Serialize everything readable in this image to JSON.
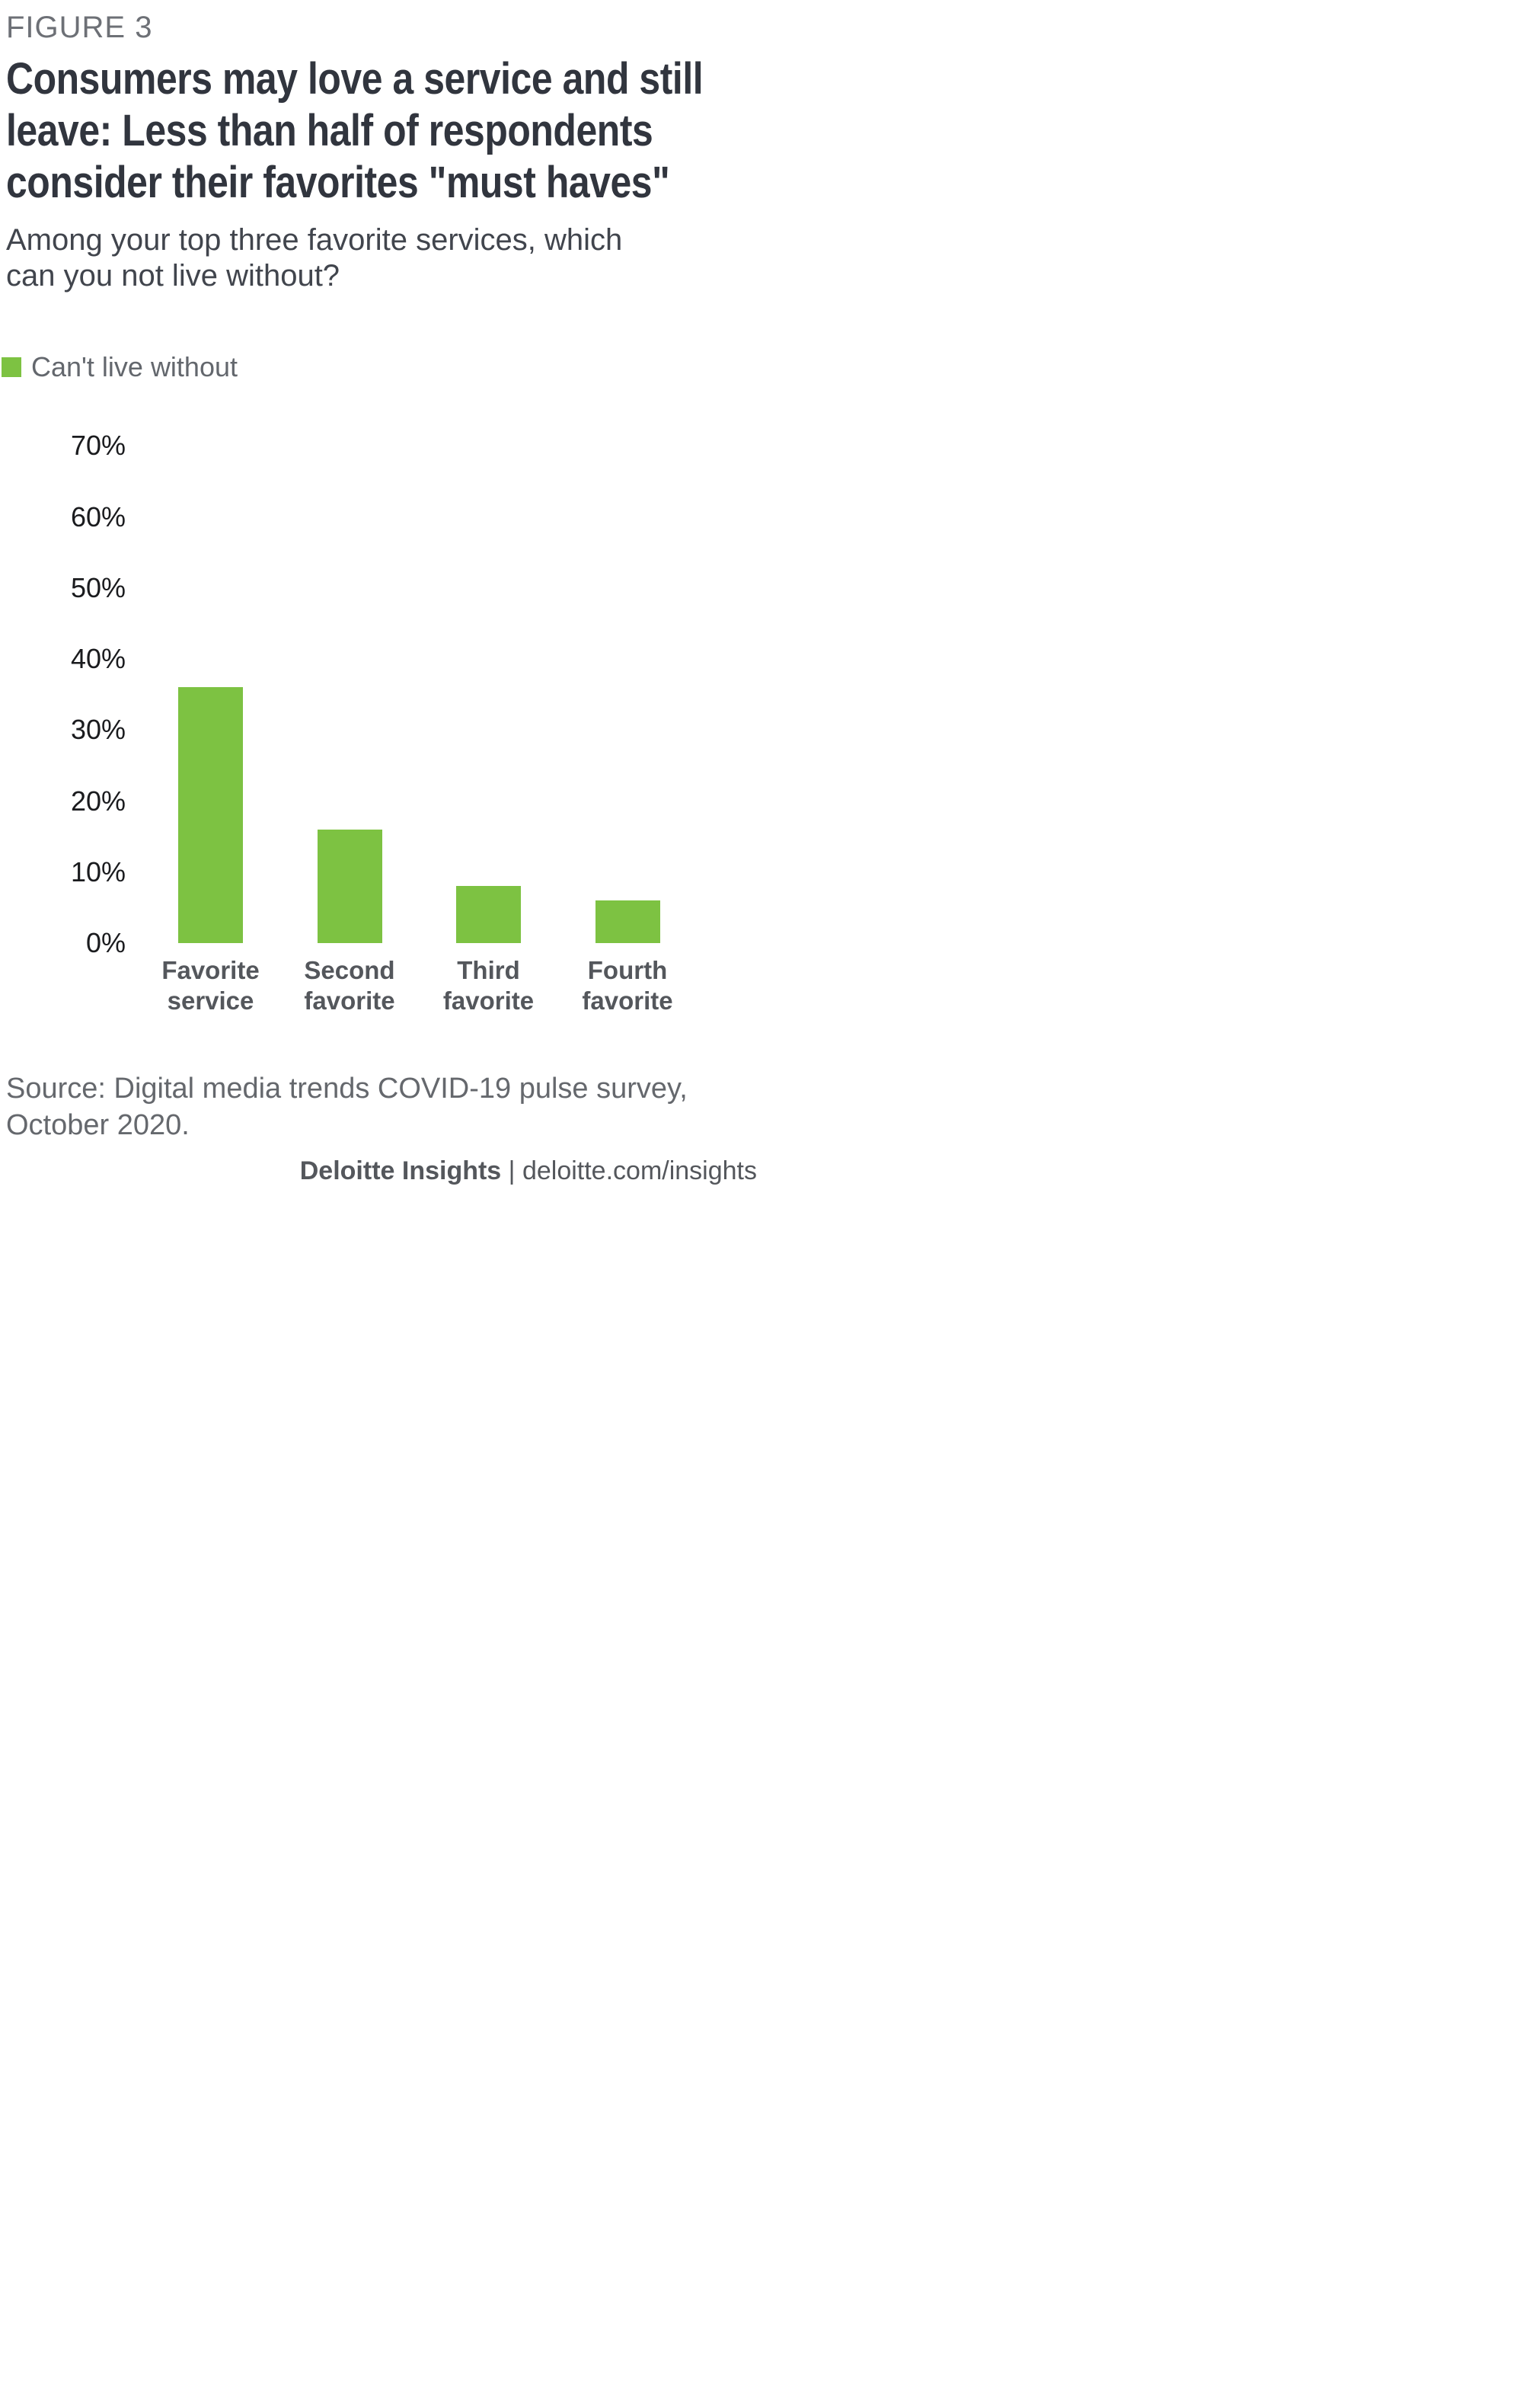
{
  "figure": {
    "label": "FIGURE 3",
    "title": "Consumers may love a service and still\nleave: Less than half of respondents\nconsider their favorites \"must haves\"",
    "subtitle": "Among your top three favorite services, which\ncan you not live without?",
    "source": "Source: Digital media trends COVID-19 pulse survey,\nOctober 2020."
  },
  "footer": {
    "brand": "Deloitte Insights",
    "separator": " | ",
    "url": "deloitte.com/insights"
  },
  "colors": {
    "bar_green": "#7dc242",
    "title_text": "#31353e",
    "figure_label_text": "#6d7076",
    "axis_tick_text": "#1a1b1e",
    "category_label_text": "#54575c",
    "muted_gray_text": "#65686d"
  },
  "chart_data": {
    "type": "bar",
    "title": "Consumers may love a service and still leave: Less than half of respondents consider their favorites \"must haves\"",
    "subtitle": "Among your top three favorite services, which can you not live without?",
    "legend": [
      "Can't live without"
    ],
    "legend_position": "top-left",
    "categories": [
      "Favorite\nservice",
      "Second\nfavorite",
      "Third\nfavorite",
      "Fourth\nfavorite"
    ],
    "values": [
      36,
      16,
      8,
      6
    ],
    "unit": "%",
    "xlabel": "",
    "ylabel": "",
    "ylim": [
      0,
      70
    ],
    "ytick_step": 10,
    "ytick_labels": [
      "0%",
      "10%",
      "20%",
      "30%",
      "40%",
      "50%",
      "60%",
      "70%"
    ],
    "grid": false,
    "bar_color": "#7dc242",
    "source": "Source: Digital media trends COVID-19 pulse survey, October 2020."
  }
}
